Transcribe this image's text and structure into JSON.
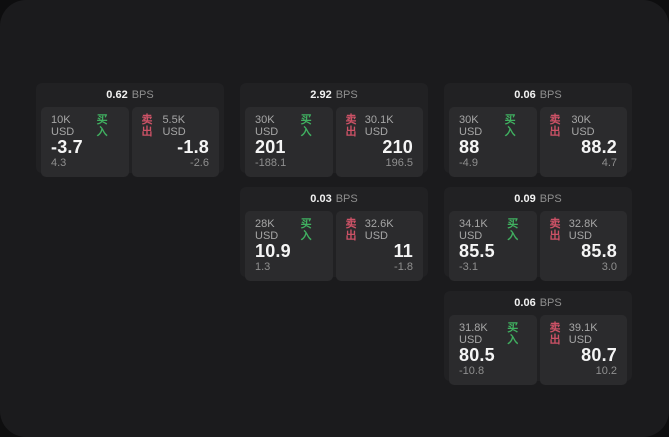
{
  "labels": {
    "buy": "买入",
    "sell": "卖出",
    "bps_unit": "BPS"
  },
  "colors": {
    "outer_background": "#0e0e0f",
    "page_background": "#1b1b1d",
    "card_background": "#212123",
    "panel_background": "#2b2b2d",
    "buy_accent": "#40b060",
    "sell_accent": "#cc5266",
    "primary_text": "#f5f5f5",
    "muted_text": "#8f8f8f"
  },
  "cards": [
    {
      "bps": "0.62",
      "buy": {
        "amount": "10K USD",
        "price": "-3.7",
        "delta": "4.3"
      },
      "sell": {
        "amount": "5.5K USD",
        "price": "-1.8",
        "delta": "-2.6"
      }
    },
    {
      "bps": "2.92",
      "buy": {
        "amount": "30K USD",
        "price": "201",
        "delta": "-188.1"
      },
      "sell": {
        "amount": "30.1K USD",
        "price": "210",
        "delta": "196.5"
      }
    },
    {
      "bps": "0.06",
      "buy": {
        "amount": "30K USD",
        "price": "88",
        "delta": "-4.9"
      },
      "sell": {
        "amount": "30K USD",
        "price": "88.2",
        "delta": "4.7"
      }
    },
    {
      "bps": "0.03",
      "buy": {
        "amount": "28K USD",
        "price": "10.9",
        "delta": "1.3"
      },
      "sell": {
        "amount": "32.6K USD",
        "price": "11",
        "delta": "-1.8"
      }
    },
    {
      "bps": "0.09",
      "buy": {
        "amount": "34.1K USD",
        "price": "85.5",
        "delta": "-3.1"
      },
      "sell": {
        "amount": "32.8K USD",
        "price": "85.8",
        "delta": "3.0"
      }
    },
    {
      "bps": "0.06",
      "buy": {
        "amount": "31.8K USD",
        "price": "80.5",
        "delta": "-10.8"
      },
      "sell": {
        "amount": "39.1K USD",
        "price": "80.7",
        "delta": "10.2"
      }
    }
  ]
}
